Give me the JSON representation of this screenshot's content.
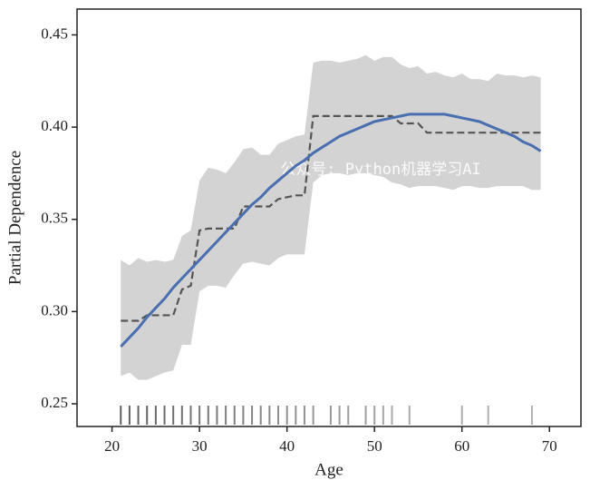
{
  "chart_data": {
    "type": "line",
    "xlabel": "Age",
    "ylabel": "Partial Dependence",
    "watermark": "公众号: Python机器学习AI",
    "xlim": [
      16,
      73.6
    ],
    "ylim": [
      0.2377,
      0.464
    ],
    "xticks": [
      20,
      30,
      40,
      50,
      60,
      70
    ],
    "yticks": [
      0.25,
      {
        "value": 0.3,
        "label": "0.30"
      },
      0.35,
      {
        "value": 0.4,
        "label": "0.40"
      },
      0.45
    ],
    "x": [
      21,
      22,
      23,
      24,
      25,
      26,
      27,
      28,
      29,
      30,
      31,
      32,
      33,
      34,
      35,
      36,
      37,
      38,
      39,
      40,
      41,
      42,
      43,
      44,
      45,
      46,
      47,
      48,
      49,
      50,
      51,
      52,
      53,
      54,
      55,
      56,
      57,
      58,
      59,
      60,
      61,
      62,
      63,
      64,
      65,
      66,
      67,
      68,
      69
    ],
    "band": {
      "color": "#d3d3d3",
      "upper": [
        0.328,
        0.325,
        0.329,
        0.327,
        0.328,
        0.327,
        0.328,
        0.341,
        0.344,
        0.371,
        0.378,
        0.377,
        0.375,
        0.381,
        0.388,
        0.389,
        0.385,
        0.385,
        0.391,
        0.393,
        0.395,
        0.396,
        0.435,
        0.436,
        0.436,
        0.435,
        0.436,
        0.437,
        0.439,
        0.436,
        0.438,
        0.438,
        0.434,
        0.432,
        0.433,
        0.429,
        0.43,
        0.428,
        0.427,
        0.429,
        0.426,
        0.426,
        0.425,
        0.429,
        0.428,
        0.428,
        0.427,
        0.428,
        0.427
      ],
      "lower": [
        0.265,
        0.267,
        0.263,
        0.263,
        0.265,
        0.267,
        0.268,
        0.282,
        0.282,
        0.311,
        0.314,
        0.314,
        0.313,
        0.32,
        0.326,
        0.327,
        0.326,
        0.325,
        0.329,
        0.331,
        0.331,
        0.331,
        0.37,
        0.374,
        0.375,
        0.375,
        0.374,
        0.375,
        0.375,
        0.374,
        0.373,
        0.37,
        0.369,
        0.367,
        0.368,
        0.368,
        0.368,
        0.367,
        0.366,
        0.368,
        0.368,
        0.367,
        0.367,
        0.368,
        0.368,
        0.368,
        0.368,
        0.366,
        0.366
      ]
    },
    "series": [
      {
        "color": "#555555",
        "dashed": true,
        "values": [
          0.295,
          0.295,
          0.295,
          0.298,
          0.298,
          0.298,
          0.298,
          0.312,
          0.314,
          0.344,
          0.345,
          0.345,
          0.345,
          0.345,
          0.357,
          0.357,
          0.357,
          0.357,
          0.361,
          0.362,
          0.363,
          0.363,
          0.406,
          0.406,
          0.406,
          0.406,
          0.406,
          0.406,
          0.406,
          0.406,
          0.406,
          0.406,
          0.402,
          0.402,
          0.402,
          0.397,
          0.397,
          0.397,
          0.397,
          0.397,
          0.397,
          0.397,
          0.397,
          0.397,
          0.397,
          0.397,
          0.397,
          0.397,
          0.397
        ]
      },
      {
        "color": "#4a6fb0",
        "dashed": false,
        "values": [
          0.281,
          0.286,
          0.291,
          0.297,
          0.302,
          0.307,
          0.313,
          0.318,
          0.323,
          0.328,
          0.333,
          0.338,
          0.343,
          0.348,
          0.353,
          0.358,
          0.362,
          0.367,
          0.371,
          0.375,
          0.379,
          0.382,
          0.386,
          0.389,
          0.392,
          0.395,
          0.397,
          0.399,
          0.401,
          0.403,
          0.404,
          0.405,
          0.406,
          0.407,
          0.407,
          0.407,
          0.407,
          0.407,
          0.406,
          0.405,
          0.404,
          0.403,
          0.401,
          0.399,
          0.397,
          0.395,
          0.392,
          0.39,
          0.387
        ]
      }
    ],
    "rug": {
      "color": "#444444",
      "x": [
        21,
        22,
        23,
        24,
        25,
        26,
        27,
        28,
        29,
        30,
        31,
        32,
        33,
        34,
        35,
        36,
        37,
        38,
        39,
        40,
        41,
        42,
        43,
        45,
        46,
        47,
        49,
        50,
        51,
        52,
        54,
        60,
        63,
        68
      ]
    }
  }
}
